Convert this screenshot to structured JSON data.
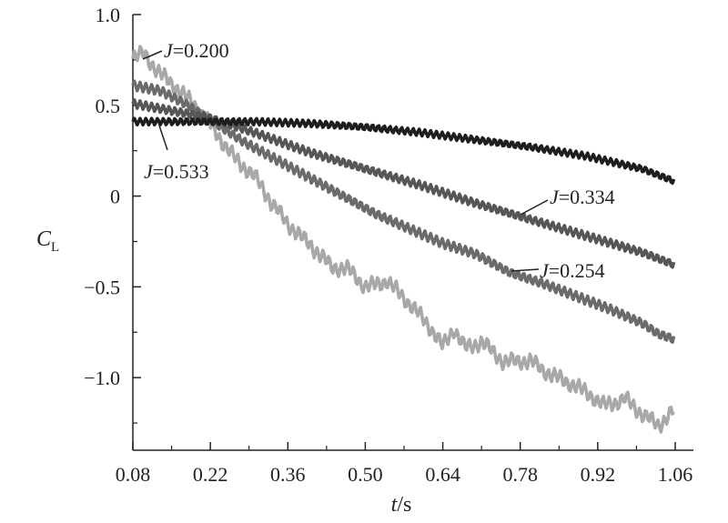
{
  "chart_data": {
    "type": "line",
    "xlabel": {
      "var": "t",
      "unit": "/s"
    },
    "ylabel": {
      "var": "C",
      "sub": "L"
    },
    "xlim": [
      0.08,
      1.08
    ],
    "ylim": [
      -1.4,
      1.0
    ],
    "xticks": [
      0.08,
      0.22,
      0.36,
      0.5,
      0.64,
      0.78,
      0.92,
      1.06
    ],
    "xtick_labels": [
      "0.08",
      "0.22",
      "0.36",
      "0.50",
      "0.64",
      "0.78",
      "0.92",
      "1.06"
    ],
    "yticks": [
      1.0,
      0.5,
      0,
      -0.5,
      -1.0
    ],
    "ytick_labels": [
      "1.0",
      "0.5",
      "0",
      "−0.5",
      "−1.0"
    ],
    "grid": false,
    "series": [
      {
        "name_var": "J",
        "name_value": "=0.200",
        "color": "#a8a8a8",
        "x": [
          0.08,
          0.1,
          0.13,
          0.17,
          0.22,
          0.27,
          0.3,
          0.33,
          0.36,
          0.4,
          0.44,
          0.47,
          0.5,
          0.54,
          0.58,
          0.62,
          0.64,
          0.66,
          0.68,
          0.71,
          0.75,
          0.8,
          0.85,
          0.89,
          0.93,
          0.97,
          1.0,
          1.03,
          1.06
        ],
        "y": [
          0.77,
          0.8,
          0.68,
          0.55,
          0.4,
          0.2,
          0.1,
          -0.05,
          -0.15,
          -0.25,
          -0.4,
          -0.42,
          -0.5,
          -0.45,
          -0.6,
          -0.75,
          -0.83,
          -0.72,
          -0.82,
          -0.8,
          -0.93,
          -0.9,
          -1.0,
          -1.08,
          -1.15,
          -1.1,
          -1.2,
          -1.28,
          -1.18
        ]
      },
      {
        "name_var": "J",
        "name_value": "=0.254",
        "color": "#6b6b6b",
        "x": [
          0.08,
          0.13,
          0.18,
          0.22,
          0.28,
          0.34,
          0.4,
          0.46,
          0.52,
          0.58,
          0.64,
          0.7,
          0.76,
          0.82,
          0.88,
          0.94,
          1.0,
          1.03,
          1.06
        ],
        "y": [
          0.61,
          0.58,
          0.5,
          0.42,
          0.3,
          0.2,
          0.1,
          0.0,
          -0.1,
          -0.18,
          -0.26,
          -0.32,
          -0.42,
          -0.48,
          -0.55,
          -0.62,
          -0.7,
          -0.76,
          -0.79
        ]
      },
      {
        "name_var": "J",
        "name_value": "=0.334",
        "color": "#565656",
        "x": [
          0.08,
          0.15,
          0.22,
          0.3,
          0.4,
          0.5,
          0.6,
          0.7,
          0.8,
          0.9,
          1.0,
          1.06
        ],
        "y": [
          0.51,
          0.47,
          0.43,
          0.35,
          0.24,
          0.15,
          0.06,
          -0.04,
          -0.13,
          -0.22,
          -0.31,
          -0.38
        ]
      },
      {
        "name_var": "J",
        "name_value": "=0.533",
        "color": "#1e1e1e",
        "x": [
          0.08,
          0.2,
          0.3,
          0.4,
          0.5,
          0.6,
          0.7,
          0.8,
          0.9,
          1.0,
          1.06
        ],
        "y": [
          0.41,
          0.41,
          0.41,
          0.4,
          0.38,
          0.35,
          0.31,
          0.27,
          0.22,
          0.15,
          0.08
        ]
      }
    ]
  }
}
